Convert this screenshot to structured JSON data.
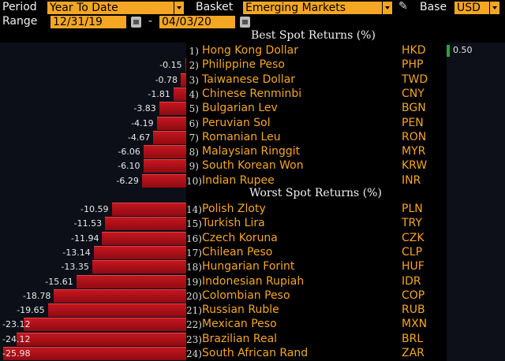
{
  "toolbar": {
    "period_label": "Period",
    "period_value": "Year To Date",
    "basket_label": "Basket",
    "basket_value": "Emerging Markets",
    "base_label": "Base",
    "base_value": "USD",
    "range_label": "Range",
    "start_date": "12/31/19",
    "date_separator": "-",
    "end_date": "04/03/20"
  },
  "best": {
    "title": "Best Spot Returns (%)",
    "rows": [
      {
        "rank": "1)",
        "name": "Hong Kong Dollar",
        "code": "HKD",
        "value": 0.5
      },
      {
        "rank": "2)",
        "name": "Philippine Peso",
        "code": "PHP",
        "value": -0.15
      },
      {
        "rank": "3)",
        "name": "Taiwanese Dollar",
        "code": "TWD",
        "value": -0.78
      },
      {
        "rank": "4)",
        "name": "Chinese Renminbi",
        "code": "CNY",
        "value": -1.81
      },
      {
        "rank": "5)",
        "name": "Bulgarian Lev",
        "code": "BGN",
        "value": -3.83
      },
      {
        "rank": "6)",
        "name": "Peruvian Sol",
        "code": "PEN",
        "value": -4.19
      },
      {
        "rank": "7)",
        "name": "Romanian Leu",
        "code": "RON",
        "value": -4.67
      },
      {
        "rank": "8)",
        "name": "Malaysian Ringgit",
        "code": "MYR",
        "value": -6.06
      },
      {
        "rank": "9)",
        "name": "South Korean Won",
        "code": "KRW",
        "value": -6.1
      },
      {
        "rank": "10)",
        "name": "Indian Rupee",
        "code": "INR",
        "value": -6.29
      }
    ]
  },
  "worst": {
    "title": "Worst Spot Returns (%)",
    "rows": [
      {
        "rank": "14)",
        "name": "Polish Zloty",
        "code": "PLN",
        "value": -10.59
      },
      {
        "rank": "15)",
        "name": "Turkish Lira",
        "code": "TRY",
        "value": -11.53
      },
      {
        "rank": "16)",
        "name": "Czech Koruna",
        "code": "CZK",
        "value": -11.94
      },
      {
        "rank": "17)",
        "name": "Chilean Peso",
        "code": "CLP",
        "value": -13.14
      },
      {
        "rank": "18)",
        "name": "Hungarian Forint",
        "code": "HUF",
        "value": -13.35
      },
      {
        "rank": "19)",
        "name": "Indonesian Rupiah",
        "code": "IDR",
        "value": -15.61
      },
      {
        "rank": "20)",
        "name": "Colombian Peso",
        "code": "COP",
        "value": -18.78
      },
      {
        "rank": "21)",
        "name": "Russian Ruble",
        "code": "RUB",
        "value": -19.65
      },
      {
        "rank": "22)",
        "name": "Mexican Peso",
        "code": "MXN",
        "value": -23.12
      },
      {
        "rank": "23)",
        "name": "Brazilian Real",
        "code": "BRL",
        "value": -24.12
      },
      {
        "rank": "24)",
        "name": "South African Rand",
        "code": "ZAR",
        "value": -25.98
      }
    ]
  },
  "icons": {
    "pencil": "pencil-icon",
    "calendar": "calendar-icon",
    "dropdown": "chevron-down-icon"
  },
  "colors": {
    "accent": "#f5a623",
    "negative_bar": "#b3121b",
    "positive_bar": "#2ea043"
  }
}
